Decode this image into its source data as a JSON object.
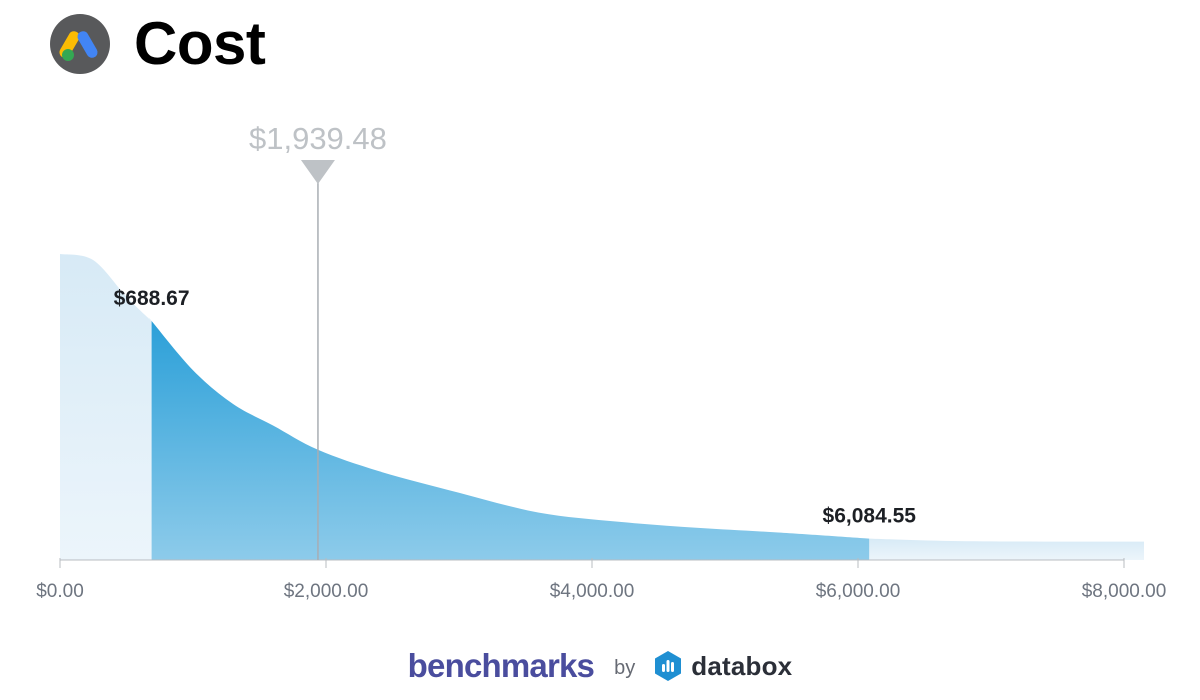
{
  "header": {
    "title": "Cost",
    "logo_icon": "google-ads-icon"
  },
  "chart_data": {
    "type": "area",
    "title": "Cost",
    "x_unit": "USD",
    "xlim": [
      0,
      8000
    ],
    "x_ticks": [
      0,
      2000,
      4000,
      6000,
      8000
    ],
    "x_tick_labels": [
      "$0.00",
      "$2,000.00",
      "$4,000.00",
      "$6,000.00",
      "$8,000.00"
    ],
    "density_curve": {
      "x": [
        0,
        250,
        500,
        690,
        1000,
        1300,
        1600,
        1940,
        2400,
        3000,
        3600,
        4200,
        4800,
        5400,
        6085,
        6700,
        7400,
        8150
      ],
      "y": [
        1.0,
        0.98,
        0.86,
        0.78,
        0.62,
        0.51,
        0.44,
        0.36,
        0.29,
        0.22,
        0.155,
        0.125,
        0.105,
        0.09,
        0.07,
        0.062,
        0.06,
        0.06
      ]
    },
    "highlight_range": {
      "from": 688.67,
      "to": 6084.55
    },
    "markers": [
      {
        "label": "$688.67",
        "value": 688.67
      },
      {
        "label": "$6,084.55",
        "value": 6084.55
      }
    ],
    "median": {
      "label": "$1,939.48",
      "value": 1939.48
    },
    "colors": {
      "highlight_top": "#2a9fd8",
      "highlight_bottom": "#8dcbea",
      "outer": "#e2f0f9",
      "axis": "#b8bcc1",
      "median_marker": "#bec2c6",
      "tick_text": "#6e7580"
    }
  },
  "footer": {
    "brand": "benchmarks",
    "by": "by",
    "databox": "databox",
    "databox_icon": "databox-logo-icon"
  }
}
